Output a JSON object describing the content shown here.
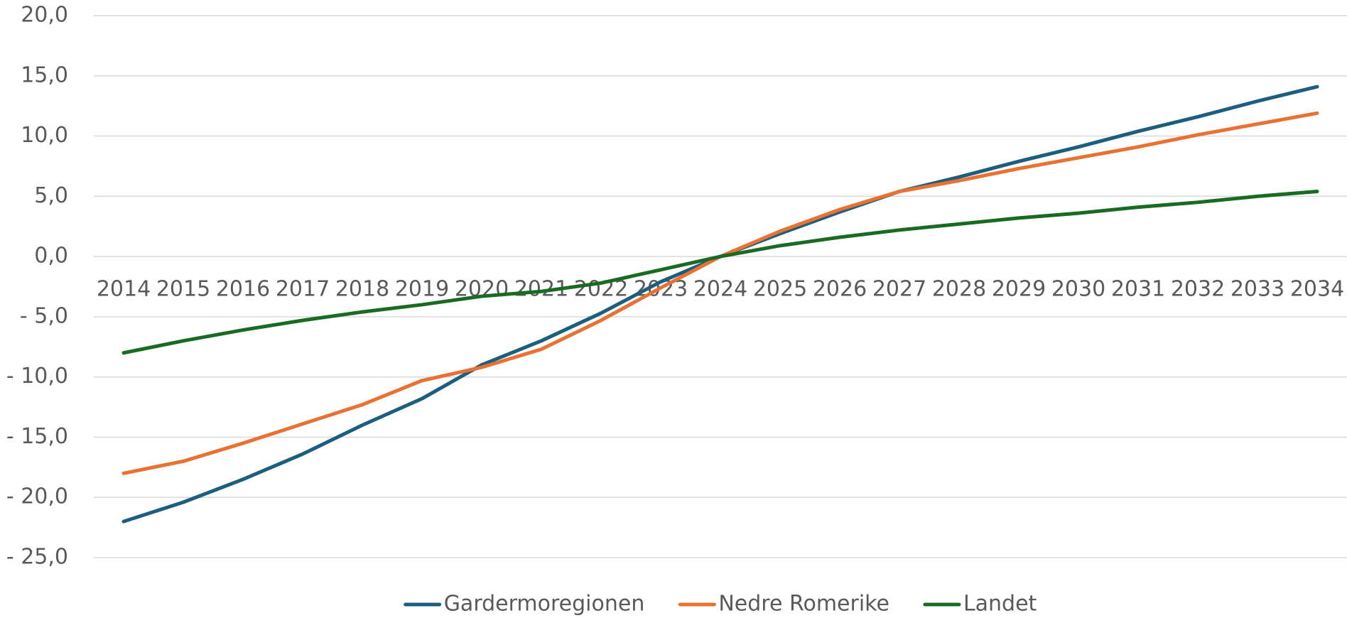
{
  "chart_data": {
    "type": "line",
    "categories": [
      "2014",
      "2015",
      "2016",
      "2017",
      "2018",
      "2019",
      "2020",
      "2021",
      "2022",
      "2023",
      "2024",
      "2025",
      "2026",
      "2027",
      "2028",
      "2029",
      "2030",
      "2031",
      "2032",
      "2033",
      "2034"
    ],
    "series": [
      {
        "name": "Gardermoregionen",
        "color": "#1b5e7e",
        "values": [
          -22.0,
          -20.4,
          -18.5,
          -16.4,
          -14.0,
          -11.8,
          -9.0,
          -7.0,
          -4.7,
          -2.1,
          0,
          1.9,
          3.7,
          5.4,
          6.6,
          7.9,
          9.1,
          10.4,
          11.6,
          12.9,
          14.1
        ]
      },
      {
        "name": "Nedre Romerike",
        "color": "#e97132",
        "values": [
          -18.0,
          -17.0,
          -15.5,
          -13.9,
          -12.3,
          -10.3,
          -9.2,
          -7.7,
          -5.3,
          -2.6,
          0,
          2.1,
          3.9,
          5.4,
          6.3,
          7.3,
          8.2,
          9.1,
          10.1,
          11.0,
          11.9
        ]
      },
      {
        "name": "Landet",
        "color": "#196b24",
        "values": [
          -8.0,
          -7.0,
          -6.1,
          -5.3,
          -4.6,
          -4.0,
          -3.3,
          -2.9,
          -2.2,
          -1.1,
          0,
          0.9,
          1.6,
          2.2,
          2.7,
          3.2,
          3.6,
          4.1,
          4.5,
          5.0,
          5.4
        ]
      }
    ],
    "ylim": [
      -25,
      20
    ],
    "yticks": [
      {
        "value": -25,
        "label": "- 25,0"
      },
      {
        "value": -20,
        "label": "- 20,0"
      },
      {
        "value": -15,
        "label": "- 15,0"
      },
      {
        "value": -10,
        "label": "- 10,0"
      },
      {
        "value": -5,
        "label": "- 5,0"
      },
      {
        "value": 0,
        "label": "0,0"
      },
      {
        "value": 5,
        "label": "5,0"
      },
      {
        "value": 10,
        "label": "10,0"
      },
      {
        "value": 15,
        "label": "15,0"
      },
      {
        "value": 20,
        "label": "20,0"
      }
    ],
    "grid": true,
    "legend": "bottom"
  }
}
